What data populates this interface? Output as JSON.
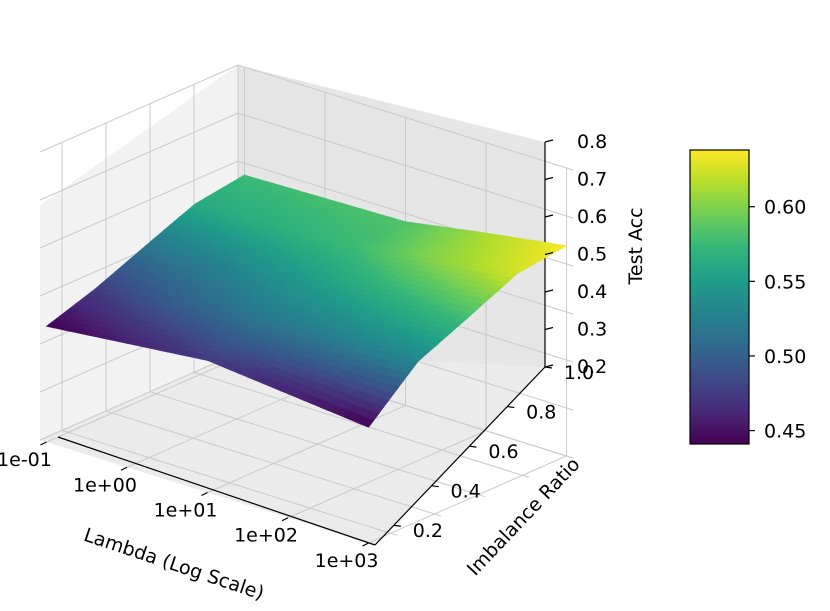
{
  "chart_data": {
    "type": "surface3d",
    "xlabel": "Lambda (Log Scale)",
    "ylabel": "Imbalance Ratio",
    "zlabel": "Test Acc",
    "x_scale": "log",
    "x_ticks": [
      "1e-01",
      "1e+00",
      "1e+01",
      "1e+02",
      "1e+03"
    ],
    "x": [
      0.1,
      1,
      10,
      100,
      1000
    ],
    "y_ticks": [
      "0.2",
      "0.4",
      "0.6",
      "0.8",
      "1.0"
    ],
    "y": [
      0.1,
      0.325,
      0.55,
      0.775,
      1.0
    ],
    "z_ticks": [
      "0.2",
      "0.3",
      "0.4",
      "0.5",
      "0.6",
      "0.7",
      "0.8"
    ],
    "zlim": [
      0.2,
      0.8
    ],
    "z_grid_note": "rows = Imbalance Ratio (y), columns = Lambda (x)",
    "z": [
      [
        0.441,
        0.458,
        0.475,
        0.458,
        0.441
      ],
      [
        0.475,
        0.5,
        0.518,
        0.525,
        0.533
      ],
      [
        0.518,
        0.53,
        0.548,
        0.563,
        0.578
      ],
      [
        0.56,
        0.566,
        0.575,
        0.603,
        0.625
      ],
      [
        0.575,
        0.579,
        0.583,
        0.612,
        0.638
      ]
    ],
    "grid": true,
    "colormap": "viridis",
    "colorbar": {
      "ticks": [
        "0.45",
        "0.50",
        "0.55",
        "0.60"
      ],
      "tick_values": [
        0.45,
        0.5,
        0.55,
        0.6
      ],
      "range": [
        0.441,
        0.638
      ]
    }
  }
}
